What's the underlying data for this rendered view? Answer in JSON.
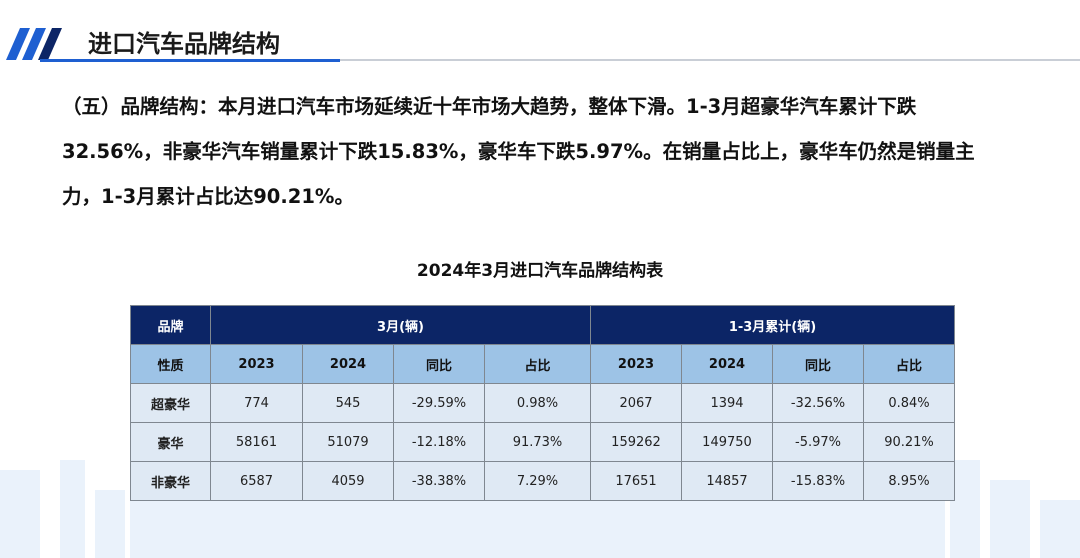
{
  "header": {
    "title": "进口汽车品牌结构"
  },
  "paragraph": "（五）品牌结构：本月进口汽车市场延续近十年市场大趋势，整体下滑。1-3月超豪华汽车累计下跌32.56%，非豪华汽车销量累计下跌15.83%，豪华车下跌5.97%。在销量占比上，豪华车仍然是销量主力，1-3月累计占比达90.21%。",
  "table": {
    "title": "2024年3月进口汽车品牌结构表",
    "header_row1": [
      "品牌",
      "3月(辆)",
      "1-3月累计(辆)"
    ],
    "header_row2": [
      "性质",
      "2023",
      "2024",
      "同比",
      "占比",
      "2023",
      "2024",
      "同比",
      "占比"
    ],
    "rows": [
      [
        "超豪华",
        "774",
        "545",
        "-29.59%",
        "0.98%",
        "2067",
        "1394",
        "-32.56%",
        "0.84%"
      ],
      [
        "豪华",
        "58161",
        "51079",
        "-12.18%",
        "91.73%",
        "159262",
        "149750",
        "-5.97%",
        "90.21%"
      ],
      [
        "非豪华",
        "6587",
        "4059",
        "-38.38%",
        "7.29%",
        "17651",
        "14857",
        "-15.83%",
        "8.95%"
      ]
    ]
  }
}
